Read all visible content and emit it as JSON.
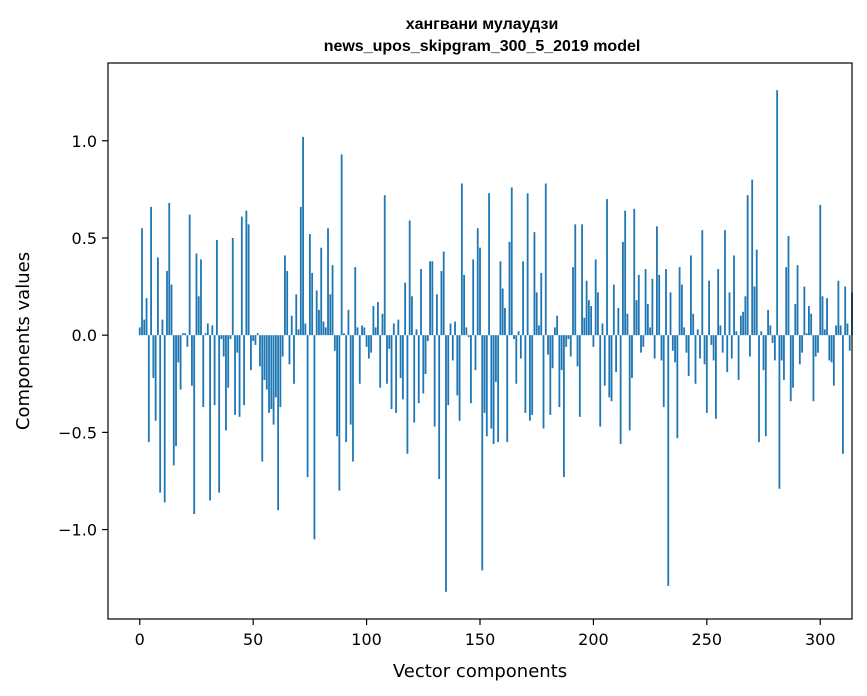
{
  "chart_data": {
    "type": "bar",
    "title": "хангвани мулаудзи",
    "subtitle": "news_upos_skipgram_300_5_2019 model",
    "xlabel": "Vector components",
    "ylabel": "Components values",
    "xlim": [
      -14,
      314
    ],
    "ylim": [
      -1.46,
      1.4
    ],
    "xticks": [
      0,
      50,
      100,
      150,
      200,
      250,
      300
    ],
    "yticks": [
      -1.0,
      -0.5,
      0.0,
      0.5,
      1.0
    ],
    "ytick_labels": [
      "−1.0",
      "−0.5",
      "0.0",
      "0.5",
      "1.0"
    ],
    "grid": false,
    "legend": "none",
    "color": "#1f77b4",
    "values": [
      0.04,
      0.55,
      0.08,
      0.19,
      -0.55,
      0.66,
      -0.22,
      -0.44,
      0.4,
      -0.81,
      0.08,
      -0.86,
      0.33,
      0.68,
      0.26,
      -0.67,
      -0.57,
      -0.14,
      -0.28,
      0.01,
      0.01,
      -0.06,
      0.62,
      -0.26,
      -0.92,
      0.42,
      0.2,
      0.39,
      -0.37,
      0.01,
      0.06,
      -0.85,
      0.05,
      -0.36,
      0.49,
      -0.81,
      -0.02,
      -0.11,
      -0.49,
      -0.27,
      -0.02,
      0.5,
      -0.41,
      -0.09,
      -0.42,
      0.61,
      -0.36,
      0.64,
      0.57,
      -0.18,
      -0.03,
      -0.05,
      0.01,
      -0.16,
      -0.65,
      -0.23,
      -0.28,
      -0.4,
      -0.38,
      -0.46,
      -0.32,
      -0.9,
      -0.37,
      -0.11,
      0.41,
      0.33,
      -0.15,
      0.1,
      -0.25,
      0.21,
      0.03,
      0.66,
      1.02,
      0.06,
      -0.73,
      0.52,
      0.32,
      -1.05,
      0.23,
      0.13,
      0.45,
      0.07,
      0.04,
      0.55,
      0.21,
      0.36,
      -0.08,
      -0.52,
      -0.8,
      0.93,
      0.01,
      -0.55,
      0.13,
      -0.46,
      -0.65,
      0.35,
      0.04,
      -0.25,
      0.05,
      0.04,
      -0.06,
      -0.12,
      -0.09,
      0.15,
      0.04,
      0.17,
      -0.27,
      0.11,
      0.72,
      -0.25,
      -0.07,
      -0.38,
      0.06,
      -0.4,
      0.08,
      -0.22,
      -0.33,
      0.27,
      -0.61,
      0.59,
      0.2,
      -0.45,
      0.03,
      -0.35,
      0.34,
      -0.3,
      -0.2,
      -0.03,
      0.38,
      0.38,
      -0.47,
      0.21,
      -0.74,
      0.33,
      0.43,
      -1.32,
      -0.36,
      0.06,
      -0.13,
      0.07,
      -0.31,
      -0.44,
      0.78,
      0.31,
      0.04,
      -0.01,
      -0.35,
      0.39,
      -0.18,
      0.55,
      0.45,
      -1.21,
      -0.4,
      -0.52,
      0.73,
      -0.48,
      -0.56,
      -0.24,
      -0.55,
      0.38,
      0.24,
      0.14,
      -0.55,
      0.48,
      0.76,
      -0.02,
      -0.25,
      0.02,
      -0.12,
      0.38,
      -0.4,
      0.73,
      -0.44,
      -0.41,
      0.53,
      0.22,
      0.05,
      0.32,
      -0.48,
      0.78,
      -0.1,
      -0.41,
      -0.17,
      0.04,
      0.1,
      -0.37,
      -0.18,
      -0.73,
      -0.06,
      -0.02,
      -0.11,
      0.35,
      0.57,
      -0.16,
      -0.42,
      0.57,
      0.09,
      0.28,
      0.18,
      0.15,
      -0.06,
      0.39,
      0.22,
      -0.47,
      0.06,
      -0.26,
      0.7,
      -0.32,
      -0.34,
      0.26,
      -0.19,
      0.14,
      -0.56,
      0.48,
      0.64,
      0.11,
      -0.49,
      -0.22,
      0.65,
      0.18,
      0.31,
      -0.09,
      -0.06,
      0.34,
      0.16,
      0.04,
      0.29,
      -0.12,
      0.56,
      0.31,
      -0.13,
      -0.37,
      0.34,
      -1.29,
      0.22,
      -0.08,
      -0.14,
      -0.53,
      0.35,
      0.26,
      0.04,
      -0.09,
      -0.21,
      0.41,
      0.11,
      -0.25,
      0.03,
      -0.12,
      0.54,
      -0.15,
      -0.4,
      0.28,
      -0.05,
      -0.13,
      -0.43,
      0.34,
      0.05,
      -0.09,
      0.54,
      -0.19,
      0.22,
      -0.12,
      0.41,
      0.02,
      -0.23,
      0.1,
      0.12,
      0.2,
      0.72,
      -0.11,
      0.8,
      0.25,
      0.44,
      -0.55,
      0.02,
      -0.18,
      -0.52,
      0.13,
      0.05,
      -0.04,
      -0.13,
      1.26,
      -0.79,
      -0.13,
      -0.23,
      0.35,
      0.51,
      -0.34,
      -0.27,
      0.16,
      0.36,
      -0.15,
      -0.09,
      0.25,
      0.01,
      0.15,
      0.11,
      -0.34,
      -0.11,
      -0.09,
      0.67,
      0.2,
      0.03,
      0.19,
      -0.13,
      -0.14,
      -0.26,
      0.05,
      0.28,
      0.05,
      -0.61,
      0.25,
      0.06,
      -0.08,
      0.22
    ]
  }
}
